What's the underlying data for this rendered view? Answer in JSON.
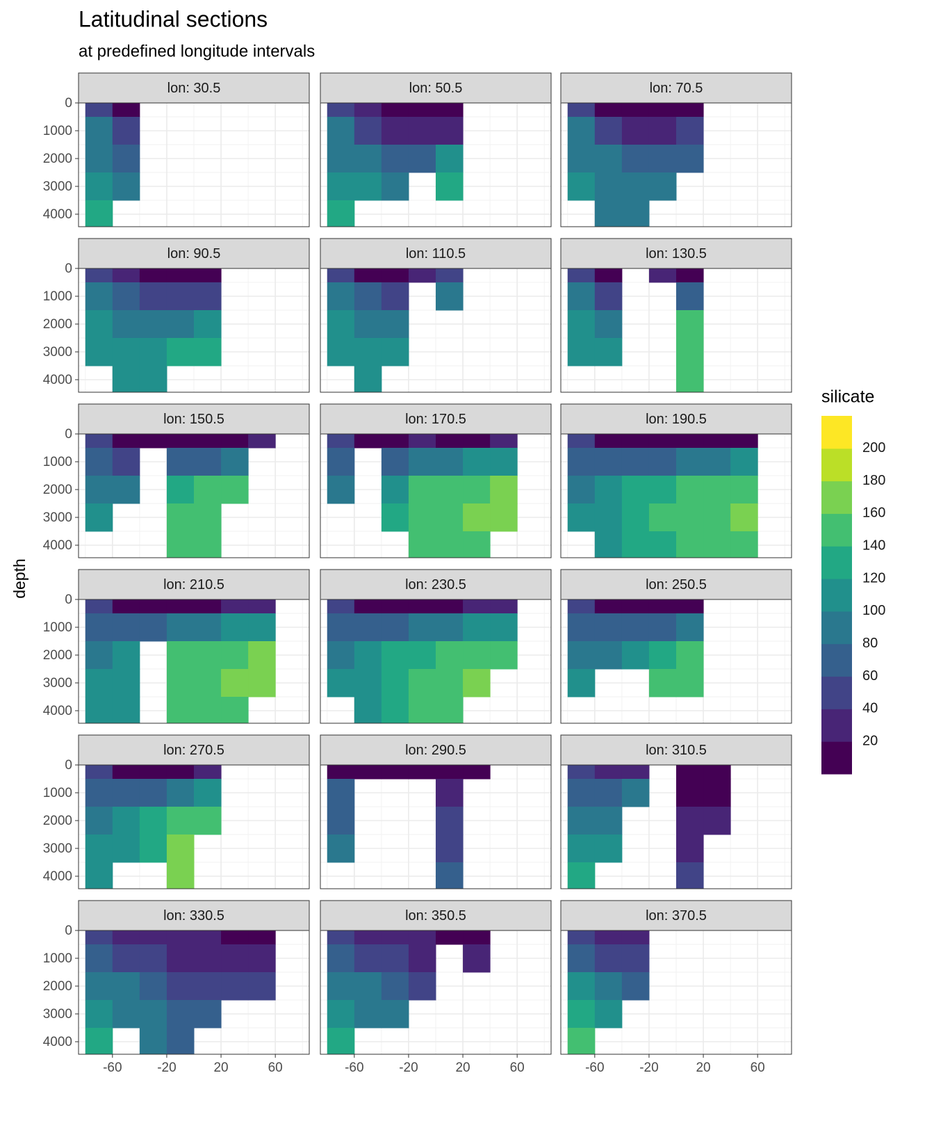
{
  "chart_data": {
    "type": "heatmap",
    "title": "Latitudinal sections",
    "subtitle": "at predefined longitude intervals",
    "y_label": "depth",
    "xlim": [
      -85,
      85
    ],
    "ylim": [
      4450,
      0
    ],
    "xticks": [
      -60,
      -20,
      20,
      60
    ],
    "yticks": [
      0,
      1000,
      2000,
      3000,
      4000
    ],
    "xminor": [
      -80,
      -40,
      0,
      40,
      80
    ],
    "yminor": [
      500,
      1500,
      2500,
      3500
    ],
    "grid": true,
    "lat_edges": [
      -80,
      -60,
      -40,
      -20,
      0,
      20,
      40,
      60
    ],
    "depth_edges": [
      0,
      500,
      1500,
      2500,
      3500,
      4450
    ],
    "legend": {
      "title": "silicate",
      "breaks": [
        20,
        40,
        60,
        80,
        100,
        120,
        140,
        160,
        180,
        200
      ],
      "limits": [
        0,
        220
      ],
      "colors": [
        "#440154",
        "#482576",
        "#414487",
        "#35608D",
        "#2A788E",
        "#21908C",
        "#22A884",
        "#43BF71",
        "#7AD151",
        "#BBDF27",
        "#FDE725"
      ]
    },
    "panels": [
      {
        "label": "lon: 30.5",
        "values": [
          [
            40,
            15,
            null,
            null,
            null,
            null,
            null
          ],
          [
            80,
            45,
            null,
            null,
            null,
            null,
            null
          ],
          [
            95,
            75,
            null,
            null,
            null,
            null,
            null
          ],
          [
            110,
            95,
            null,
            null,
            null,
            null,
            null
          ],
          [
            130,
            null,
            null,
            null,
            null,
            null,
            null
          ]
        ]
      },
      {
        "label": "lon: 50.5",
        "values": [
          [
            50,
            20,
            10,
            10,
            10,
            null,
            null
          ],
          [
            80,
            50,
            30,
            25,
            30,
            null,
            null
          ],
          [
            95,
            80,
            70,
            60,
            100,
            null,
            null
          ],
          [
            110,
            100,
            90,
            null,
            120,
            null,
            null
          ],
          [
            120,
            null,
            null,
            null,
            null,
            null,
            null
          ]
        ]
      },
      {
        "label": "lon: 70.5",
        "values": [
          [
            50,
            15,
            10,
            10,
            15,
            null,
            null
          ],
          [
            80,
            50,
            30,
            30,
            40,
            null,
            null
          ],
          [
            95,
            85,
            70,
            70,
            70,
            null,
            null
          ],
          [
            100,
            95,
            90,
            90,
            null,
            null,
            null
          ],
          [
            null,
            95,
            95,
            null,
            null,
            null,
            null
          ]
        ]
      },
      {
        "label": "lon: 90.5",
        "values": [
          [
            50,
            20,
            10,
            10,
            10,
            null,
            null
          ],
          [
            80,
            60,
            40,
            40,
            50,
            null,
            null
          ],
          [
            100,
            90,
            85,
            90,
            110,
            null,
            null
          ],
          [
            110,
            110,
            100,
            120,
            130,
            null,
            null
          ],
          [
            null,
            110,
            110,
            null,
            null,
            null,
            null
          ]
        ]
      },
      {
        "label": "lon: 110.5",
        "values": [
          [
            50,
            15,
            10,
            20,
            40,
            null,
            null
          ],
          [
            80,
            60,
            40,
            null,
            80,
            null,
            null
          ],
          [
            100,
            90,
            80,
            null,
            null,
            null,
            null
          ],
          [
            110,
            100,
            100,
            null,
            null,
            null,
            null
          ],
          [
            null,
            105,
            null,
            null,
            null,
            null,
            null
          ]
        ]
      },
      {
        "label": "lon: 130.5",
        "values": [
          [
            50,
            15,
            null,
            30,
            10,
            null,
            null
          ],
          [
            80,
            50,
            null,
            null,
            70,
            null,
            null
          ],
          [
            100,
            90,
            null,
            null,
            140,
            null,
            null
          ],
          [
            110,
            100,
            null,
            null,
            145,
            null,
            null
          ],
          [
            null,
            null,
            null,
            null,
            145,
            null,
            null
          ]
        ]
      },
      {
        "label": "lon: 150.5",
        "values": [
          [
            40,
            15,
            10,
            10,
            10,
            15,
            20
          ],
          [
            70,
            50,
            null,
            60,
            70,
            80,
            null
          ],
          [
            90,
            80,
            null,
            130,
            140,
            140,
            null
          ],
          [
            100,
            null,
            null,
            140,
            145,
            null,
            null
          ],
          [
            null,
            null,
            null,
            140,
            145,
            null,
            null
          ]
        ]
      },
      {
        "label": "lon: 170.5",
        "values": [
          [
            40,
            15,
            10,
            20,
            10,
            15,
            20
          ],
          [
            70,
            null,
            60,
            80,
            90,
            100,
            110
          ],
          [
            90,
            null,
            110,
            140,
            145,
            150,
            165
          ],
          [
            null,
            null,
            130,
            145,
            150,
            160,
            165
          ],
          [
            null,
            null,
            null,
            145,
            150,
            155,
            null
          ]
        ]
      },
      {
        "label": "lon: 190.5",
        "values": [
          [
            40,
            15,
            10,
            10,
            10,
            10,
            15
          ],
          [
            70,
            60,
            60,
            70,
            80,
            90,
            100
          ],
          [
            90,
            100,
            120,
            130,
            140,
            140,
            145
          ],
          [
            100,
            110,
            130,
            150,
            150,
            150,
            160
          ],
          [
            null,
            110,
            120,
            130,
            140,
            140,
            145
          ]
        ]
      },
      {
        "label": "lon: 210.5",
        "values": [
          [
            40,
            15,
            10,
            10,
            15,
            20,
            20
          ],
          [
            70,
            60,
            70,
            80,
            90,
            100,
            110
          ],
          [
            90,
            100,
            null,
            140,
            145,
            150,
            160
          ],
          [
            100,
            110,
            null,
            145,
            150,
            160,
            165
          ],
          [
            110,
            110,
            null,
            140,
            145,
            150,
            null
          ]
        ]
      },
      {
        "label": "lon: 230.5",
        "values": [
          [
            40,
            15,
            10,
            10,
            15,
            20,
            20
          ],
          [
            70,
            60,
            70,
            80,
            90,
            100,
            100
          ],
          [
            90,
            100,
            120,
            135,
            140,
            145,
            150
          ],
          [
            100,
            110,
            120,
            140,
            150,
            160,
            null
          ],
          [
            null,
            110,
            120,
            140,
            145,
            null,
            null
          ]
        ]
      },
      {
        "label": "lon: 250.5",
        "values": [
          [
            40,
            15,
            10,
            10,
            10,
            null,
            null
          ],
          [
            70,
            60,
            60,
            70,
            90,
            null,
            null
          ],
          [
            90,
            90,
            100,
            120,
            140,
            null,
            null
          ],
          [
            100,
            null,
            null,
            140,
            150,
            null,
            null
          ],
          [
            null,
            null,
            null,
            null,
            null,
            null,
            null
          ]
        ]
      },
      {
        "label": "lon: 270.5",
        "values": [
          [
            40,
            15,
            10,
            10,
            20,
            null,
            null
          ],
          [
            70,
            60,
            70,
            90,
            100,
            null,
            null
          ],
          [
            90,
            100,
            120,
            140,
            150,
            null,
            null
          ],
          [
            100,
            110,
            130,
            160,
            null,
            null,
            null
          ],
          [
            110,
            null,
            null,
            160,
            null,
            null,
            null
          ]
        ]
      },
      {
        "label": "lon: 290.5",
        "values": [
          [
            10,
            10,
            10,
            10,
            10,
            10,
            null
          ],
          [
            60,
            null,
            null,
            null,
            20,
            null,
            null
          ],
          [
            70,
            null,
            null,
            null,
            40,
            null,
            null
          ],
          [
            80,
            null,
            null,
            null,
            50,
            null,
            null
          ],
          [
            null,
            null,
            null,
            null,
            60,
            null,
            null
          ]
        ]
      },
      {
        "label": "lon: 310.5",
        "values": [
          [
            40,
            20,
            20,
            null,
            10,
            10,
            null
          ],
          [
            70,
            60,
            80,
            null,
            10,
            10,
            null
          ],
          [
            90,
            80,
            null,
            null,
            20,
            30,
            null
          ],
          [
            110,
            100,
            null,
            null,
            30,
            null,
            null
          ],
          [
            130,
            null,
            null,
            null,
            50,
            null,
            null
          ]
        ]
      },
      {
        "label": "lon: 330.5",
        "values": [
          [
            40,
            20,
            20,
            20,
            20,
            10,
            10
          ],
          [
            70,
            50,
            40,
            30,
            30,
            20,
            20
          ],
          [
            90,
            80,
            60,
            40,
            40,
            40,
            40
          ],
          [
            110,
            90,
            80,
            70,
            60,
            null,
            null
          ],
          [
            120,
            null,
            80,
            70,
            null,
            null,
            null
          ]
        ]
      },
      {
        "label": "lon: 350.5",
        "values": [
          [
            40,
            20,
            20,
            20,
            10,
            10,
            null
          ],
          [
            70,
            50,
            40,
            30,
            null,
            20,
            null
          ],
          [
            90,
            80,
            70,
            40,
            null,
            null,
            null
          ],
          [
            100,
            90,
            90,
            null,
            null,
            null,
            null
          ],
          [
            120,
            null,
            null,
            null,
            null,
            null,
            null
          ]
        ]
      },
      {
        "label": "lon: 370.5",
        "values": [
          [
            40,
            20,
            20,
            null,
            null,
            null,
            null
          ],
          [
            70,
            50,
            40,
            null,
            null,
            null,
            null
          ],
          [
            100,
            80,
            60,
            null,
            null,
            null,
            null
          ],
          [
            120,
            100,
            null,
            null,
            null,
            null,
            null
          ],
          [
            140,
            null,
            null,
            null,
            null,
            null,
            null
          ]
        ]
      }
    ]
  }
}
